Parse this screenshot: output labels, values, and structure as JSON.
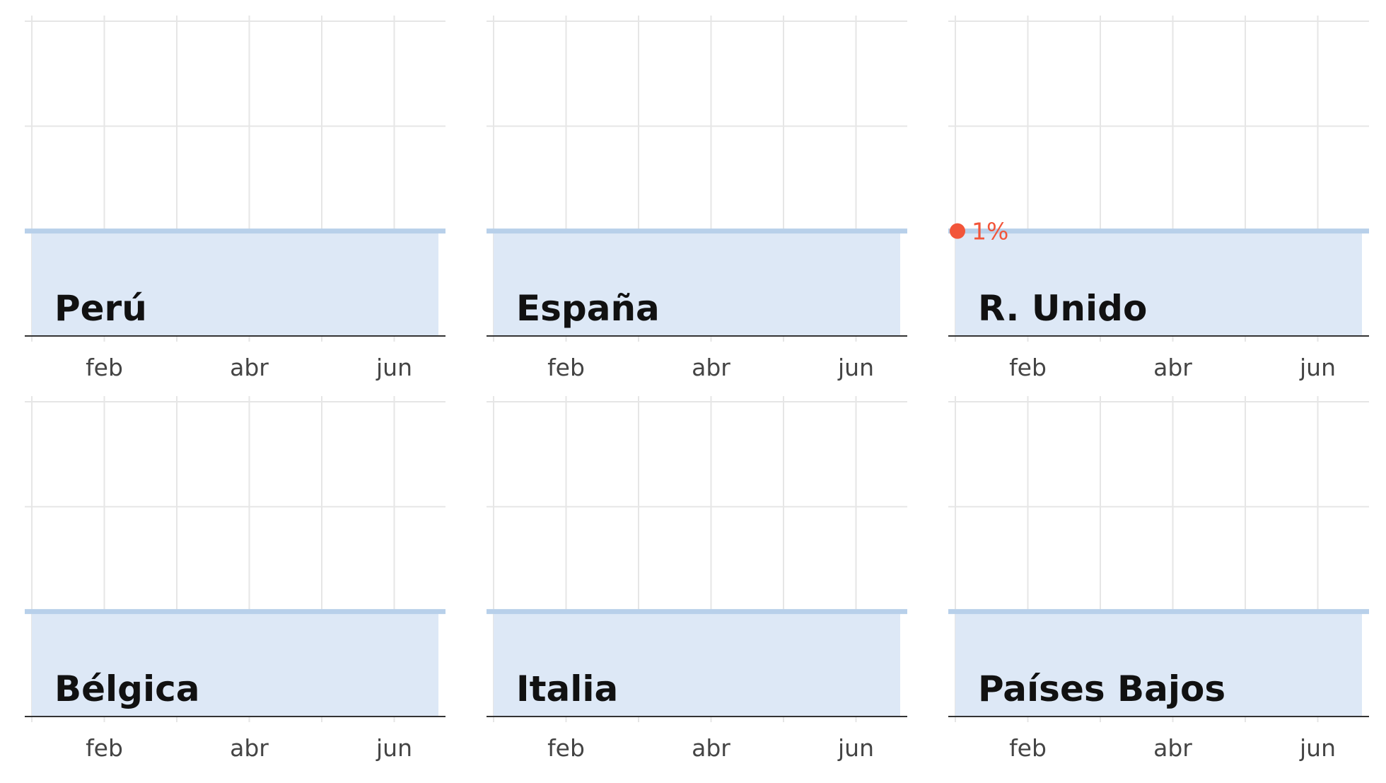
{
  "chart_data": [
    {
      "type": "area",
      "title": "Perú",
      "x_ticks": [
        "feb",
        "abr",
        "jun"
      ],
      "x_months": [
        1,
        12
      ],
      "ylim": [
        0,
        3
      ],
      "values": [
        1,
        1
      ],
      "annotation": null
    },
    {
      "type": "area",
      "title": "España",
      "x_ticks": [
        "feb",
        "abr",
        "jun"
      ],
      "x_months": [
        1,
        12
      ],
      "ylim": [
        0,
        3
      ],
      "values": [
        1,
        1
      ],
      "annotation": null
    },
    {
      "type": "area",
      "title": "R. Unido",
      "x_ticks": [
        "feb",
        "abr",
        "jun"
      ],
      "x_months": [
        1,
        12
      ],
      "ylim": [
        0,
        3
      ],
      "values": [
        1,
        1
      ],
      "annotation": {
        "label": "1%",
        "value": 1
      }
    },
    {
      "type": "area",
      "title": "Bélgica",
      "x_ticks": [
        "feb",
        "abr",
        "jun"
      ],
      "x_months": [
        1,
        12
      ],
      "ylim": [
        0,
        3
      ],
      "values": [
        1,
        1
      ],
      "annotation": null
    },
    {
      "type": "area",
      "title": "Italia",
      "x_ticks": [
        "feb",
        "abr",
        "jun"
      ],
      "x_months": [
        1,
        12
      ],
      "ylim": [
        0,
        3
      ],
      "values": [
        1,
        1
      ],
      "annotation": null
    },
    {
      "type": "area",
      "title": "Países Bajos",
      "x_ticks": [
        "feb",
        "abr",
        "jun"
      ],
      "x_months": [
        1,
        12
      ],
      "ylim": [
        0,
        3
      ],
      "values": [
        1,
        1
      ],
      "annotation": null
    }
  ],
  "colors": {
    "area_fill": "#dde8f6",
    "line": "#b8d0ea",
    "grid": "#e6e6e6",
    "axis": "#333333",
    "accent": "#f2553a"
  }
}
